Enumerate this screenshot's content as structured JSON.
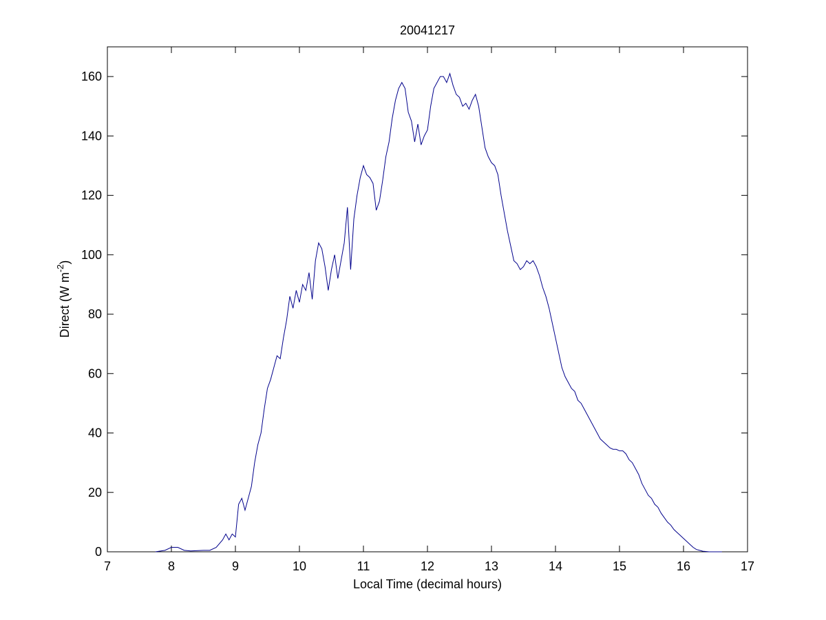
{
  "chart_data": {
    "type": "line",
    "title": "20041217",
    "x_label": "Local Time (decimal hours)",
    "y_label": {
      "text": "Direct (W m",
      "superscript": "-2",
      "suffix": ")"
    },
    "x": [
      7.75,
      7.9,
      8.0,
      8.1,
      8.2,
      8.3,
      8.5,
      8.6,
      8.7,
      8.8,
      8.85,
      8.9,
      8.95,
      9.0,
      9.05,
      9.1,
      9.15,
      9.2,
      9.25,
      9.3,
      9.35,
      9.4,
      9.45,
      9.5,
      9.55,
      9.6,
      9.65,
      9.7,
      9.75,
      9.8,
      9.85,
      9.9,
      9.95,
      10.0,
      10.05,
      10.1,
      10.15,
      10.2,
      10.25,
      10.3,
      10.35,
      10.4,
      10.45,
      10.5,
      10.55,
      10.6,
      10.65,
      10.7,
      10.75,
      10.8,
      10.85,
      10.9,
      10.95,
      11.0,
      11.05,
      11.1,
      11.15,
      11.2,
      11.25,
      11.3,
      11.35,
      11.4,
      11.45,
      11.5,
      11.55,
      11.6,
      11.65,
      11.7,
      11.75,
      11.8,
      11.85,
      11.9,
      11.95,
      12.0,
      12.05,
      12.1,
      12.15,
      12.2,
      12.25,
      12.3,
      12.35,
      12.4,
      12.45,
      12.5,
      12.55,
      12.6,
      12.65,
      12.7,
      12.75,
      12.8,
      12.85,
      12.9,
      12.95,
      13.0,
      13.05,
      13.1,
      13.15,
      13.2,
      13.25,
      13.3,
      13.35,
      13.4,
      13.45,
      13.5,
      13.55,
      13.6,
      13.65,
      13.7,
      13.75,
      13.8,
      13.85,
      13.9,
      13.95,
      14.0,
      14.05,
      14.1,
      14.15,
      14.2,
      14.25,
      14.3,
      14.35,
      14.4,
      14.45,
      14.5,
      14.55,
      14.6,
      14.65,
      14.7,
      14.75,
      14.8,
      14.85,
      14.9,
      14.95,
      15.0,
      15.05,
      15.1,
      15.15,
      15.2,
      15.25,
      15.3,
      15.35,
      15.4,
      15.45,
      15.5,
      15.55,
      15.6,
      15.65,
      15.7,
      15.75,
      15.8,
      15.85,
      15.9,
      15.95,
      16.0,
      16.05,
      16.1,
      16.15,
      16.2,
      16.3,
      16.4,
      16.6
    ],
    "series": [
      {
        "color": "#00008b",
        "values": [
          0,
          0.5,
          1.5,
          1.5,
          0.5,
          0.3,
          0.5,
          0.5,
          1.5,
          4,
          6,
          4,
          6,
          5,
          16,
          18,
          14,
          18,
          22,
          30,
          36,
          40,
          48,
          55,
          58,
          62,
          66,
          65,
          72,
          78,
          86,
          82,
          88,
          84,
          90,
          88,
          94,
          85,
          98,
          104,
          102,
          96,
          88,
          95,
          100,
          92,
          98,
          104,
          116,
          95,
          112,
          120,
          126,
          130,
          127,
          126,
          124,
          115,
          118,
          125,
          133,
          138,
          146,
          152,
          156,
          158,
          156,
          148,
          145,
          138,
          144,
          137,
          140,
          142,
          150,
          156,
          158,
          160,
          160,
          158,
          161,
          157,
          154,
          153,
          150,
          151,
          149,
          152,
          154,
          150,
          143,
          136,
          133,
          131,
          130,
          127,
          120,
          114,
          108,
          103,
          98,
          97,
          95,
          96,
          98,
          97,
          98,
          96,
          93,
          89,
          86,
          82,
          77,
          72,
          67,
          62,
          59,
          57,
          55,
          54,
          51,
          50,
          48,
          46,
          44,
          42,
          40,
          38,
          37,
          36,
          35,
          34.5,
          34.5,
          34,
          34,
          33,
          31,
          30,
          28,
          26,
          23,
          21,
          19,
          18,
          16,
          15,
          13,
          11.5,
          10,
          9,
          7.5,
          6.5,
          5.5,
          4.5,
          3.5,
          2.5,
          1.5,
          0.8,
          0.2,
          0,
          0
        ]
      }
    ],
    "xlim": [
      7,
      17
    ],
    "xticks": [
      7,
      8,
      9,
      10,
      11,
      12,
      13,
      14,
      15,
      16,
      17
    ],
    "ylim": [
      0,
      170
    ],
    "yticks": [
      0,
      20,
      40,
      60,
      80,
      100,
      120,
      140,
      160
    ]
  }
}
